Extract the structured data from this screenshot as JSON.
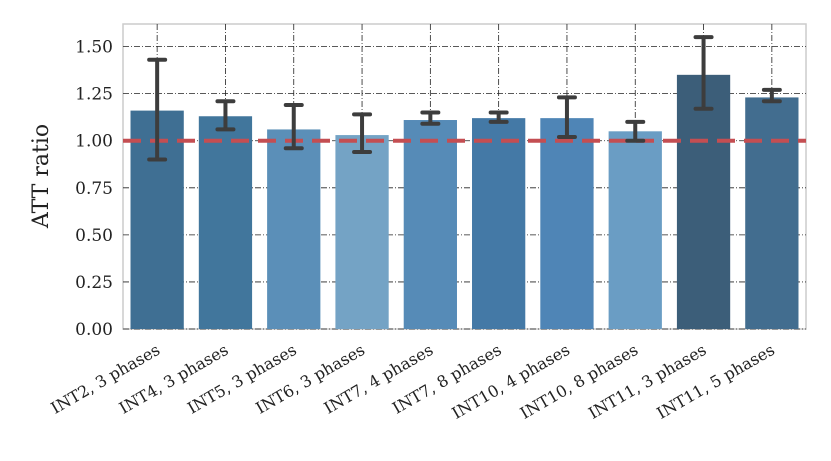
{
  "chart_data": {
    "type": "bar",
    "title": "",
    "xlabel": "",
    "ylabel": "ATT ratio",
    "ylim": [
      0,
      1.62
    ],
    "yticks": [
      0.0,
      0.25,
      0.5,
      0.75,
      1.0,
      1.25,
      1.5
    ],
    "ytick_labels": [
      "0.00",
      "0.25",
      "0.50",
      "0.75",
      "1.00",
      "1.25",
      "1.50"
    ],
    "grid": true,
    "reference_line": {
      "value": 1.0,
      "color": "#c44e52",
      "style": "dashed"
    },
    "categories": [
      "INT2, 3 phases",
      "INT4, 3 phases",
      "INT5, 3 phases",
      "INT6, 3 phases",
      "INT7, 4 phases",
      "INT7, 8 phases",
      "INT10, 4 phases",
      "INT10, 8 phases",
      "INT11, 3 phases",
      "INT11, 5 phases"
    ],
    "values": [
      1.16,
      1.13,
      1.06,
      1.03,
      1.11,
      1.12,
      1.12,
      1.05,
      1.35,
      1.23
    ],
    "error_low": [
      0.9,
      1.06,
      0.96,
      0.94,
      1.09,
      1.1,
      1.02,
      1.0,
      1.17,
      1.21
    ],
    "error_high": [
      1.43,
      1.21,
      1.19,
      1.14,
      1.15,
      1.15,
      1.23,
      1.1,
      1.55,
      1.27
    ],
    "bar_colors": [
      "#3f6f93",
      "#41769c",
      "#5b8fb8",
      "#74a3c5",
      "#568bb7",
      "#4479a6",
      "#4f85b6",
      "#6a9dc4",
      "#3c5e79",
      "#426d8f"
    ],
    "error_color": "#3d3d3d"
  }
}
